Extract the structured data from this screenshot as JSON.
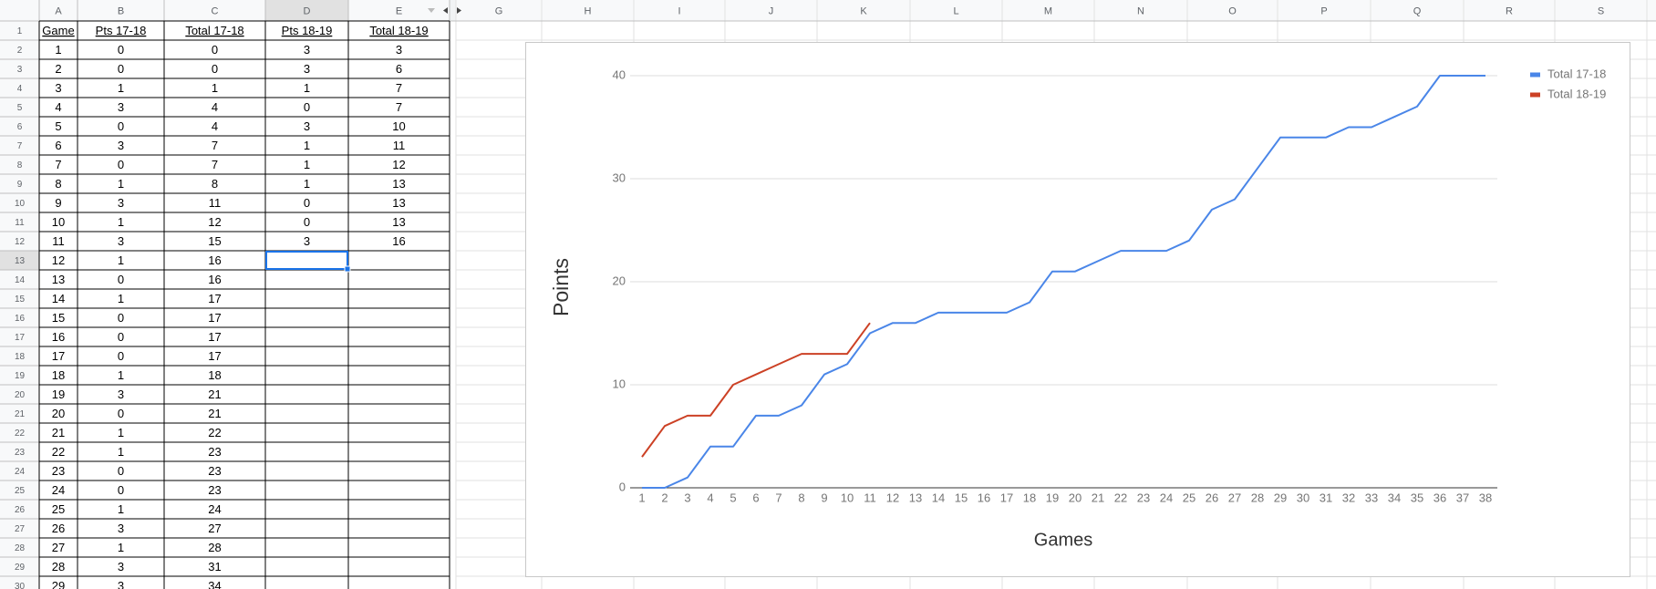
{
  "sheet": {
    "column_headers": [
      "A",
      "B",
      "C",
      "D",
      "E",
      "G",
      "H",
      "I",
      "J",
      "K",
      "L",
      "M",
      "N",
      "O",
      "P",
      "Q",
      "R",
      "S"
    ],
    "row_numbers": [
      1,
      2,
      3,
      4,
      5,
      6,
      7,
      8,
      9,
      10,
      11,
      12,
      13,
      14,
      15,
      16,
      17,
      18,
      19,
      20,
      21,
      22,
      23,
      24,
      25,
      26,
      27,
      28,
      29,
      30
    ],
    "header": [
      "Game",
      "Pts 17-18",
      "Total 17-18",
      "Pts 18-19",
      "Total 18-19"
    ],
    "rows": [
      [
        1,
        0,
        0,
        3,
        3
      ],
      [
        2,
        0,
        0,
        3,
        6
      ],
      [
        3,
        1,
        1,
        1,
        7
      ],
      [
        4,
        3,
        4,
        0,
        7
      ],
      [
        5,
        0,
        4,
        3,
        10
      ],
      [
        6,
        3,
        7,
        1,
        11
      ],
      [
        7,
        0,
        7,
        1,
        12
      ],
      [
        8,
        1,
        8,
        1,
        13
      ],
      [
        9,
        3,
        11,
        0,
        13
      ],
      [
        10,
        1,
        12,
        0,
        13
      ],
      [
        11,
        3,
        15,
        3,
        16
      ],
      [
        12,
        1,
        16
      ],
      [
        13,
        0,
        16
      ],
      [
        14,
        1,
        17
      ],
      [
        15,
        0,
        17
      ],
      [
        16,
        0,
        17
      ],
      [
        17,
        0,
        17
      ],
      [
        18,
        1,
        18
      ],
      [
        19,
        3,
        21
      ],
      [
        20,
        0,
        21
      ],
      [
        21,
        1,
        22
      ],
      [
        22,
        1,
        23
      ],
      [
        23,
        0,
        23
      ],
      [
        24,
        0,
        23
      ],
      [
        25,
        1,
        24
      ],
      [
        26,
        3,
        27
      ],
      [
        27,
        1,
        28
      ],
      [
        28,
        3,
        31
      ],
      [
        29,
        3,
        34
      ]
    ]
  },
  "chart_data": {
    "type": "line",
    "x_label": "Games",
    "y_label": "Points",
    "x": [
      1,
      2,
      3,
      4,
      5,
      6,
      7,
      8,
      9,
      10,
      11,
      12,
      13,
      14,
      15,
      16,
      17,
      18,
      19,
      20,
      21,
      22,
      23,
      24,
      25,
      26,
      27,
      28,
      29,
      30,
      31,
      32,
      33,
      34,
      35,
      36,
      37,
      38
    ],
    "series": [
      {
        "name": "Total 17-18",
        "color": "#4a86e8",
        "values": [
          0,
          0,
          1,
          4,
          4,
          7,
          7,
          8,
          11,
          12,
          15,
          16,
          16,
          17,
          17,
          17,
          17,
          18,
          21,
          21,
          22,
          23,
          23,
          23,
          24,
          27,
          28,
          31,
          34,
          34,
          34,
          35,
          35,
          36,
          37,
          40,
          40,
          40
        ]
      },
      {
        "name": "Total 18-19",
        "color": "#cc4125",
        "values": [
          3,
          6,
          7,
          7,
          10,
          11,
          12,
          13,
          13,
          13,
          16,
          null,
          null,
          null,
          null,
          null,
          null,
          null,
          null,
          null,
          null,
          null,
          null,
          null,
          null,
          null,
          null,
          null,
          null,
          null,
          null,
          null,
          null,
          null,
          null,
          null,
          null,
          null
        ]
      }
    ],
    "xlim": [
      1,
      38
    ],
    "ylim": [
      0,
      40
    ],
    "yticks": [
      0,
      10,
      20,
      30,
      40
    ],
    "grid": true,
    "legend": "top-right"
  }
}
